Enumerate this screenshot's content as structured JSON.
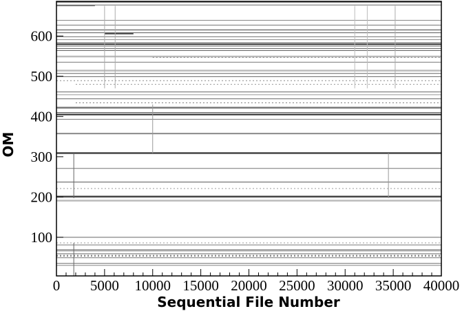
{
  "chart_data": {
    "type": "line",
    "title": "",
    "xlabel": "Sequential File Number",
    "ylabel": "OM",
    "xlim": [
      0,
      40000
    ],
    "ylim": [
      4,
      686
    ],
    "xticks": [
      0,
      5000,
      10000,
      15000,
      20000,
      25000,
      30000,
      35000,
      40000
    ],
    "yticks": [
      100,
      200,
      300,
      400,
      500,
      600
    ],
    "grid": false,
    "horizontal_segments": [
      {
        "om": 684,
        "x0": 0,
        "x1": 40000,
        "shade": "#444"
      },
      {
        "om": 677,
        "x0": 0,
        "x1": 40000,
        "shade": "#666"
      },
      {
        "om": 675,
        "x0": 0,
        "x1": 4000,
        "shade": "#555"
      },
      {
        "om": 639,
        "x0": 0,
        "x1": 40000,
        "shade": "#888"
      },
      {
        "om": 627,
        "x0": 0,
        "x1": 40000,
        "shade": "#777"
      },
      {
        "om": 615,
        "x0": 0,
        "x1": 40000,
        "shade": "#444"
      },
      {
        "om": 608,
        "x0": 0,
        "x1": 40000,
        "shade": "#555"
      },
      {
        "om": 606,
        "x0": 5000,
        "x1": 8000,
        "shade": "#555",
        "thick": true
      },
      {
        "om": 598,
        "x0": 0,
        "x1": 40000,
        "shade": "#777"
      },
      {
        "om": 591,
        "x0": 0,
        "x1": 40000,
        "shade": "#888"
      },
      {
        "om": 583,
        "x0": 0,
        "x1": 40000,
        "shade": "#444"
      },
      {
        "om": 579,
        "x0": 0,
        "x1": 40000,
        "shade": "#555",
        "thick": true
      },
      {
        "om": 574,
        "x0": 0,
        "x1": 40000,
        "shade": "#999"
      },
      {
        "om": 569,
        "x0": 0,
        "x1": 40000,
        "shade": "#666"
      },
      {
        "om": 564,
        "x0": 0,
        "x1": 40000,
        "shade": "#555"
      },
      {
        "om": 549,
        "x0": 0,
        "x1": 40000,
        "shade": "#bbb",
        "thick": true
      },
      {
        "om": 547,
        "x0": 10000,
        "x1": 40000,
        "shade": "#777",
        "dotted": true
      },
      {
        "om": 535,
        "x0": 0,
        "x1": 40000,
        "shade": "#777"
      },
      {
        "om": 514,
        "x0": 0,
        "x1": 40000,
        "shade": "#bbb",
        "thick": true
      },
      {
        "om": 507,
        "x0": 0,
        "x1": 40000,
        "shade": "#666"
      },
      {
        "om": 499,
        "x0": 0,
        "x1": 40000,
        "shade": "#666"
      },
      {
        "om": 489,
        "x0": 0,
        "x1": 40000,
        "shade": "#888",
        "dotted": true
      },
      {
        "om": 480,
        "x0": 2000,
        "x1": 40000,
        "shade": "#999",
        "dotted": true
      },
      {
        "om": 461,
        "x0": 0,
        "x1": 40000,
        "shade": "#666"
      },
      {
        "om": 454,
        "x0": 0,
        "x1": 40000,
        "shade": "#999"
      },
      {
        "om": 444,
        "x0": 0,
        "x1": 40000,
        "shade": "#666"
      },
      {
        "om": 434,
        "x0": 2000,
        "x1": 40000,
        "shade": "#777",
        "dotted": true
      },
      {
        "om": 422,
        "x0": 0,
        "x1": 40000,
        "shade": "#777",
        "thick": true
      },
      {
        "om": 410,
        "x0": 0,
        "x1": 40000,
        "shade": "#555"
      },
      {
        "om": 405,
        "x0": 0,
        "x1": 40000,
        "shade": "#444",
        "thick": true
      },
      {
        "om": 393,
        "x0": 0,
        "x1": 40000,
        "shade": "#777"
      },
      {
        "om": 359,
        "x0": 0,
        "x1": 40000,
        "shade": "#aaa"
      },
      {
        "om": 357,
        "x0": 0,
        "x1": 40000,
        "shade": "#666"
      },
      {
        "om": 309,
        "x0": 0,
        "x1": 40000,
        "shade": "#444",
        "thick": true
      },
      {
        "om": 271,
        "x0": 0,
        "x1": 40000,
        "shade": "#777"
      },
      {
        "om": 237,
        "x0": 0,
        "x1": 40000,
        "shade": "#555"
      },
      {
        "om": 221,
        "x0": 0,
        "x1": 40000,
        "shade": "#999",
        "dotted": true
      },
      {
        "om": 201,
        "x0": 0,
        "x1": 40000,
        "shade": "#444",
        "thick": true
      },
      {
        "om": 191,
        "x0": 0,
        "x1": 40000,
        "shade": "#bbb",
        "thick": true
      },
      {
        "om": 100,
        "x0": 0,
        "x1": 40000,
        "shade": "#666"
      },
      {
        "om": 86,
        "x0": 0,
        "x1": 40000,
        "shade": "#999",
        "dotted": true
      },
      {
        "om": 81,
        "x0": 0,
        "x1": 40000,
        "shade": "#777"
      },
      {
        "om": 69,
        "x0": 0,
        "x1": 40000,
        "shade": "#555"
      },
      {
        "om": 66,
        "x0": 0,
        "x1": 40000,
        "shade": "#888"
      },
      {
        "om": 59,
        "x0": 0,
        "x1": 40000,
        "shade": "#666"
      },
      {
        "om": 54,
        "x0": 0,
        "x1": 40000,
        "shade": "#888",
        "thick": true,
        "dotted": true
      },
      {
        "om": 49,
        "x0": 0,
        "x1": 40000,
        "shade": "#777"
      },
      {
        "om": 35,
        "x0": 0,
        "x1": 40000,
        "shade": "#666"
      },
      {
        "om": 30,
        "x0": 0,
        "x1": 40000,
        "shade": "#888"
      }
    ],
    "vertical_segments": [
      {
        "x": 1800,
        "om0": 197,
        "om1": 309,
        "shade": "#666"
      },
      {
        "x": 1800,
        "om0": 4,
        "om1": 86,
        "shade": "#666"
      },
      {
        "x": 5000,
        "om0": 470,
        "om1": 675,
        "shade": "#aaa"
      },
      {
        "x": 6100,
        "om0": 470,
        "om1": 675,
        "shade": "#aaa"
      },
      {
        "x": 10000,
        "om0": 309,
        "om1": 430,
        "shade": "#999"
      },
      {
        "x": 31000,
        "om0": 470,
        "om1": 675,
        "shade": "#bbb"
      },
      {
        "x": 32300,
        "om0": 470,
        "om1": 675,
        "shade": "#bbb"
      },
      {
        "x": 34500,
        "om0": 197,
        "om1": 309,
        "shade": "#999"
      },
      {
        "x": 35200,
        "om0": 470,
        "om1": 675,
        "shade": "#aaa"
      }
    ]
  }
}
